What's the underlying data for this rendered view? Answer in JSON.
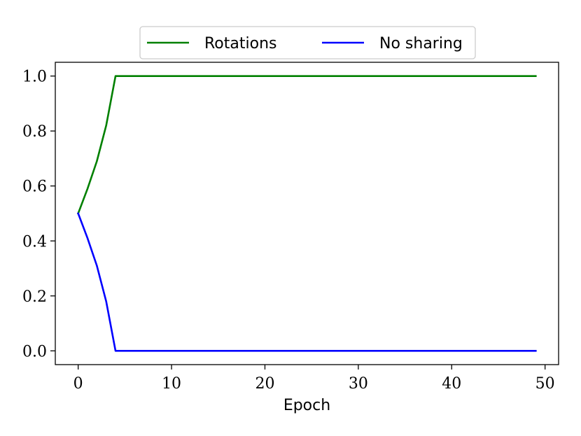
{
  "chart_data": {
    "type": "line",
    "xlabel": "Epoch",
    "ylabel": "",
    "xlim": [
      -2.45,
      51.45
    ],
    "ylim": [
      -0.05,
      1.05
    ],
    "xticks": [
      0,
      10,
      20,
      30,
      40,
      50
    ],
    "yticks": [
      0.0,
      0.2,
      0.4,
      0.6,
      0.8,
      1.0
    ],
    "xtick_labels": [
      "0",
      "10",
      "20",
      "30",
      "40",
      "50"
    ],
    "ytick_labels": [
      "0.0",
      "0.2",
      "0.4",
      "0.6",
      "0.8",
      "1.0"
    ],
    "legend_position": "top-center",
    "grid": false,
    "series": [
      {
        "name": "Rotations",
        "color": "#008000",
        "x": [
          0,
          1,
          2,
          3,
          4,
          49
        ],
        "y": [
          0.5,
          0.59,
          0.69,
          0.82,
          1.0,
          1.0
        ]
      },
      {
        "name": "No sharing",
        "color": "#0000ff",
        "x": [
          0,
          1,
          2,
          3,
          4,
          49
        ],
        "y": [
          0.5,
          0.41,
          0.31,
          0.18,
          0.0,
          0.0
        ]
      }
    ]
  }
}
